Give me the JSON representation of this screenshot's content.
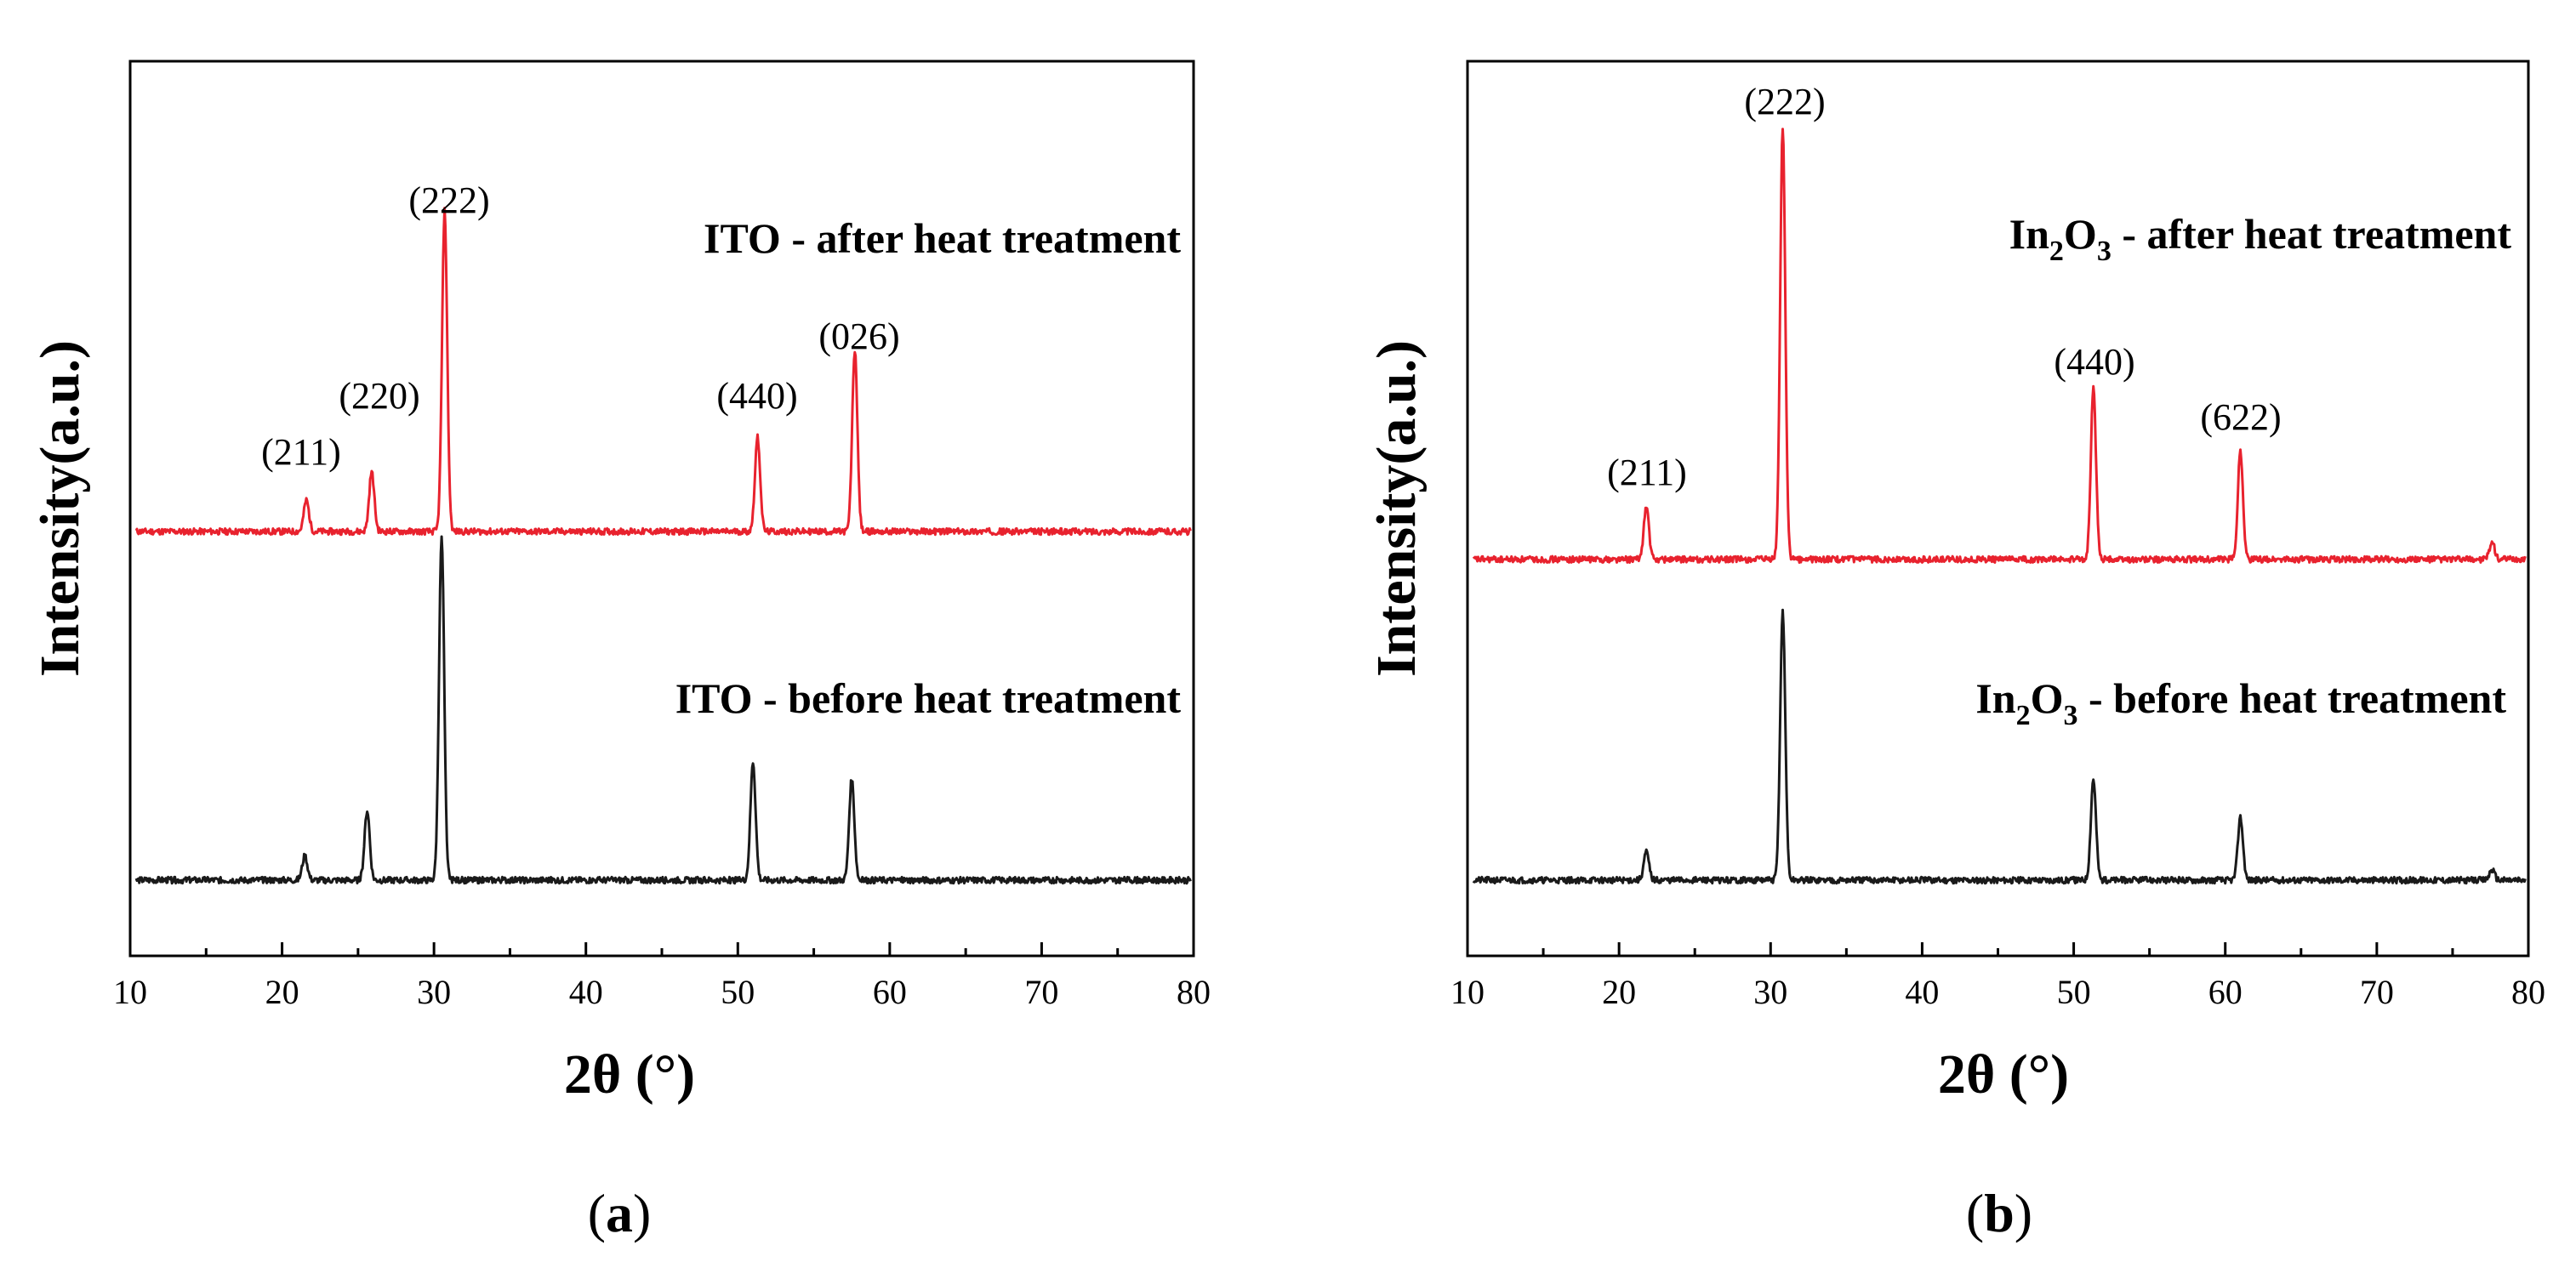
{
  "chart_data": [
    {
      "type": "line",
      "panel_label": "(a)",
      "panel_letter": "a",
      "xlabel": "2θ (°)",
      "ylabel": "Intensity(a.u.)",
      "xlim": [
        10,
        80
      ],
      "xticks": [
        10,
        20,
        30,
        40,
        50,
        60,
        70,
        80
      ],
      "grid": false,
      "series": [
        {
          "name": "ITO - after heat treatment",
          "color": "#e8222e",
          "baseline": 1.0,
          "peaks": [
            {
              "x": 21.6,
              "h": 0.09
            },
            {
              "x": 25.9,
              "h": 0.17
            },
            {
              "x": 30.7,
              "h": 0.92
            },
            {
              "x": 51.3,
              "h": 0.27
            },
            {
              "x": 57.7,
              "h": 0.52
            }
          ]
        },
        {
          "name": "ITO - before heat treatment",
          "color": "#1a1a1a",
          "baseline": 0.0,
          "peaks": [
            {
              "x": 21.5,
              "h": 0.07
            },
            {
              "x": 25.6,
              "h": 0.2
            },
            {
              "x": 30.5,
              "h": 0.98
            },
            {
              "x": 51.0,
              "h": 0.34
            },
            {
              "x": 57.5,
              "h": 0.29
            }
          ]
        }
      ],
      "annotations": [
        {
          "text": "(211)",
          "x": 21.6,
          "y": 1.12
        },
        {
          "text": "(220)",
          "x": 25.9,
          "y": 1.4
        },
        {
          "text": "(222)",
          "x": 30.7,
          "y": 2.0
        },
        {
          "text": "(440)",
          "x": 51.3,
          "y": 1.29
        },
        {
          "text": "(026)",
          "x": 57.7,
          "y": 1.59
        }
      ]
    },
    {
      "type": "line",
      "panel_label": "(b)",
      "panel_letter": "b",
      "xlabel": "2θ (°)",
      "ylabel": "Intensity(a.u.)",
      "xlim": [
        10,
        80
      ],
      "xticks": [
        10,
        20,
        30,
        40,
        50,
        60,
        70,
        80
      ],
      "grid": false,
      "series": [
        {
          "name": "In2O3 - after heat treatment",
          "name_parts": [
            "In",
            "2",
            "O",
            "3",
            " - after heat treatment"
          ],
          "color": "#e8222e",
          "baseline": 0.92,
          "peaks": [
            {
              "x": 21.8,
              "h": 0.15
            },
            {
              "x": 30.8,
              "h": 1.24
            },
            {
              "x": 51.3,
              "h": 0.49
            },
            {
              "x": 61.0,
              "h": 0.31
            },
            {
              "x": 77.6,
              "h": 0.05
            }
          ]
        },
        {
          "name": "In2O3 - before heat treatment",
          "name_parts": [
            "In",
            "2",
            "O",
            "3",
            " - before heat treatment"
          ],
          "color": "#1a1a1a",
          "baseline": 0.0,
          "peaks": [
            {
              "x": 21.8,
              "h": 0.08
            },
            {
              "x": 30.8,
              "h": 0.77
            },
            {
              "x": 51.3,
              "h": 0.29
            },
            {
              "x": 61.0,
              "h": 0.18
            },
            {
              "x": 77.6,
              "h": 0.03
            }
          ]
        }
      ],
      "annotations": [
        {
          "text": "(211)",
          "x": 21.8,
          "y": 1.24
        },
        {
          "text": "(222)",
          "x": 30.8,
          "y": 2.33
        },
        {
          "text": "(440)",
          "x": 51.3,
          "y": 1.57
        },
        {
          "text": "(622)",
          "x": 61.0,
          "y": 1.38
        }
      ]
    }
  ]
}
